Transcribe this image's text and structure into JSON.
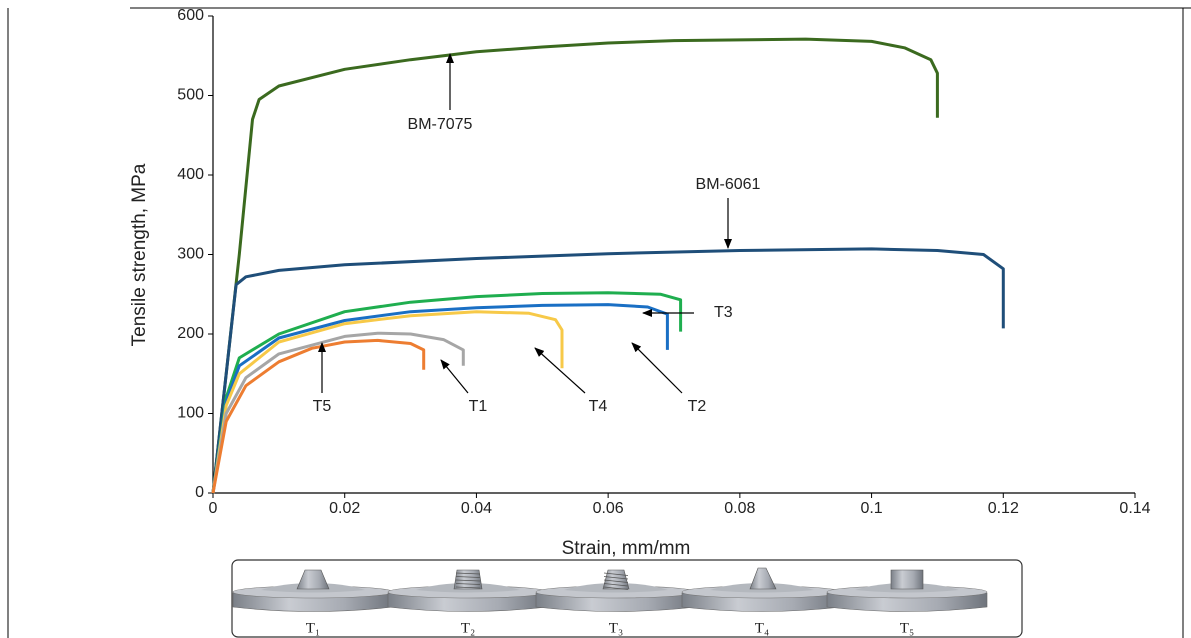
{
  "chart_data": {
    "type": "line",
    "x_label": "Strain, mm/mm",
    "y_label": "Tensile strength, MPa",
    "xlim": [
      0,
      0.14
    ],
    "xticks": [
      0,
      0.02,
      0.04,
      0.06,
      0.08,
      0.1,
      0.12,
      0.14
    ],
    "ylim": [
      0,
      600
    ],
    "yticks": [
      0,
      100,
      200,
      300,
      400,
      500,
      600
    ],
    "grid": false,
    "series": [
      {
        "name": "BM-7075",
        "color": "#3b6a1f",
        "x": [
          0,
          0.002,
          0.004,
          0.006,
          0.007,
          0.01,
          0.02,
          0.03,
          0.04,
          0.05,
          0.06,
          0.07,
          0.08,
          0.09,
          0.1,
          0.105,
          0.109,
          0.11,
          0.11
        ],
        "values": [
          0,
          150,
          300,
          470,
          495,
          512,
          533,
          545,
          555,
          561,
          566,
          569,
          570,
          571,
          568,
          560,
          545,
          528,
          472
        ]
      },
      {
        "name": "BM-6061",
        "color": "#1f4e79",
        "x": [
          0,
          0.002,
          0.0035,
          0.005,
          0.01,
          0.02,
          0.04,
          0.06,
          0.08,
          0.1,
          0.11,
          0.117,
          0.12,
          0.12
        ],
        "values": [
          0,
          150,
          262,
          272,
          280,
          287,
          295,
          301,
          305,
          307,
          305,
          300,
          282,
          207
        ]
      },
      {
        "name": "T3",
        "color": "#1fae4f",
        "x": [
          0,
          0.002,
          0.004,
          0.01,
          0.02,
          0.03,
          0.04,
          0.05,
          0.06,
          0.068,
          0.071,
          0.071
        ],
        "values": [
          0,
          120,
          170,
          200,
          228,
          240,
          247,
          251,
          252,
          250,
          243,
          203
        ]
      },
      {
        "name": "T2",
        "color": "#1a6fc4",
        "x": [
          0,
          0.002,
          0.004,
          0.01,
          0.02,
          0.03,
          0.04,
          0.05,
          0.06,
          0.066,
          0.069,
          0.069
        ],
        "values": [
          0,
          115,
          160,
          195,
          217,
          228,
          233,
          236,
          237,
          234,
          225,
          180
        ]
      },
      {
        "name": "T4",
        "color": "#f7c948",
        "x": [
          0,
          0.002,
          0.004,
          0.01,
          0.02,
          0.03,
          0.04,
          0.048,
          0.052,
          0.053,
          0.053
        ],
        "values": [
          0,
          110,
          150,
          190,
          213,
          223,
          228,
          226,
          218,
          205,
          157
        ]
      },
      {
        "name": "T1",
        "color": "#a6a6a6",
        "x": [
          0,
          0.002,
          0.005,
          0.01,
          0.02,
          0.025,
          0.03,
          0.035,
          0.038,
          0.038
        ],
        "values": [
          0,
          100,
          145,
          175,
          197,
          201,
          200,
          193,
          180,
          160
        ]
      },
      {
        "name": "T5",
        "color": "#ed7d31",
        "x": [
          0,
          0.002,
          0.005,
          0.01,
          0.015,
          0.02,
          0.025,
          0.03,
          0.032,
          0.032
        ],
        "values": [
          0,
          90,
          135,
          165,
          182,
          190,
          192,
          188,
          180,
          155
        ]
      }
    ]
  },
  "tool_panel": {
    "labels": [
      "T₁",
      "T₂",
      "T₃",
      "T₄",
      "T₅"
    ]
  }
}
